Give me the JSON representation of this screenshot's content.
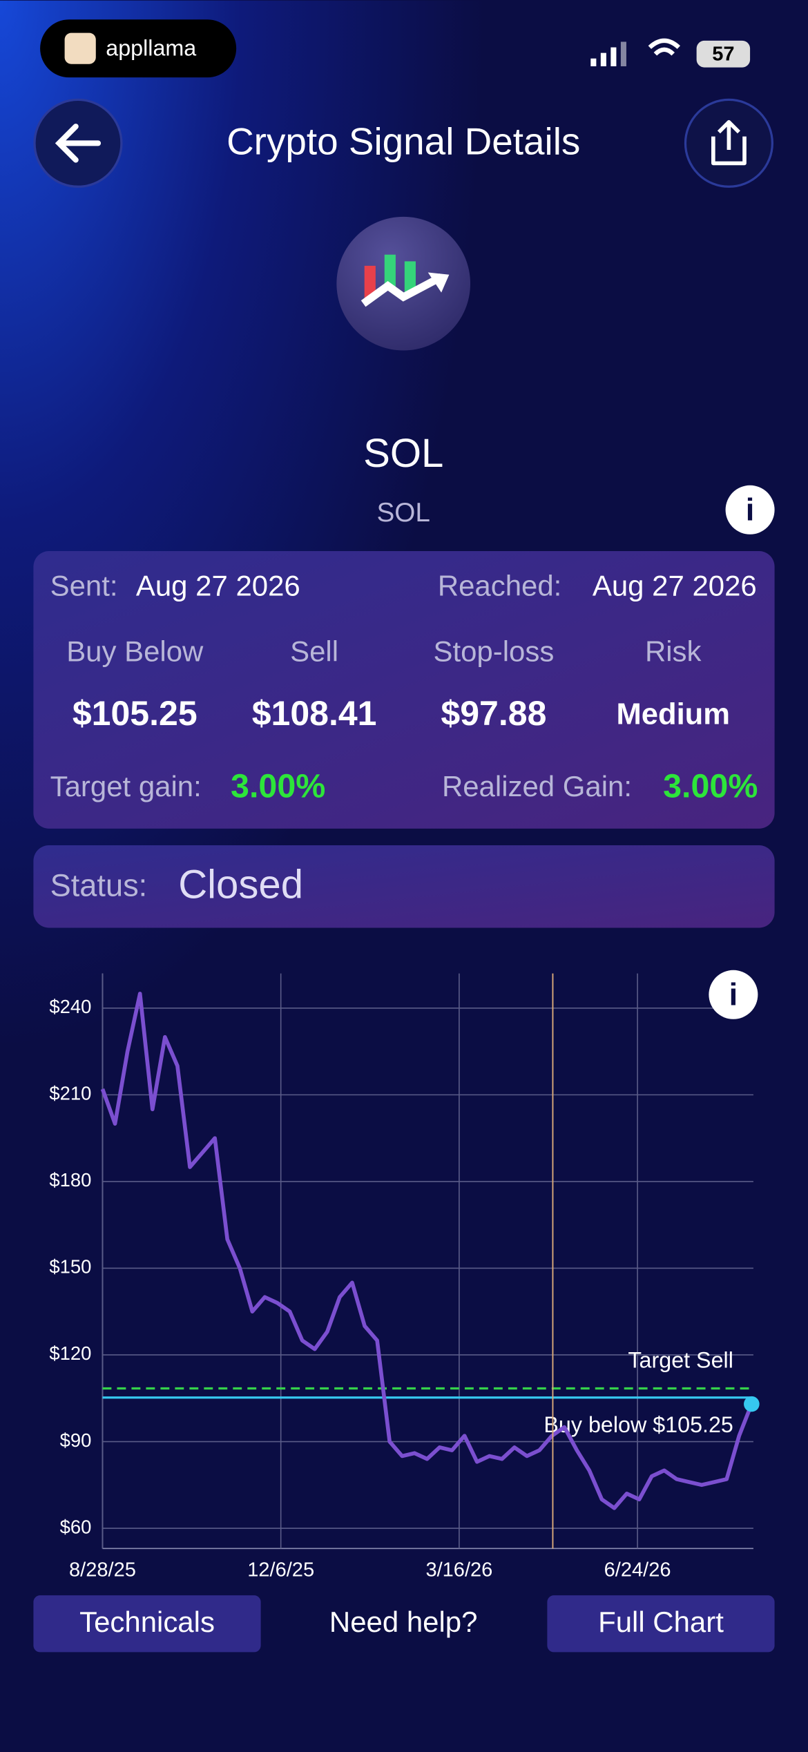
{
  "status_bar": {
    "app": "appllama",
    "battery": "57"
  },
  "header": {
    "title": "Crypto Signal Details"
  },
  "coin": {
    "name": "SOL",
    "symbol": "SOL"
  },
  "signal": {
    "sent_label": "Sent:",
    "sent": "Aug 27 2026",
    "reached_label": "Reached:",
    "reached": "Aug 27 2026",
    "columns": [
      {
        "label": "Buy Below",
        "value": "$105.25"
      },
      {
        "label": "Sell",
        "value": "$108.41"
      },
      {
        "label": "Stop-loss",
        "value": "$97.88"
      },
      {
        "label": "Risk",
        "value": "Medium"
      }
    ],
    "target_label": "Target gain:",
    "target": "3.00%",
    "realized_label": "Realized Gain:",
    "realized": "3.00%"
  },
  "status": {
    "label": "Status:",
    "value": "Closed"
  },
  "chart_data": {
    "type": "line",
    "x": [
      "2025-08-28",
      "2025-09-04",
      "2025-09-11",
      "2025-09-18",
      "2025-09-25",
      "2025-10-02",
      "2025-10-09",
      "2025-10-16",
      "2025-10-23",
      "2025-10-30",
      "2025-11-06",
      "2025-11-13",
      "2025-11-20",
      "2025-11-27",
      "2025-12-04",
      "2025-12-11",
      "2025-12-18",
      "2025-12-25",
      "2026-01-01",
      "2026-01-08",
      "2026-01-15",
      "2026-01-22",
      "2026-01-29",
      "2026-02-05",
      "2026-02-12",
      "2026-02-19",
      "2026-02-26",
      "2026-03-05",
      "2026-03-12",
      "2026-03-19",
      "2026-03-26",
      "2026-04-02",
      "2026-04-09",
      "2026-04-16",
      "2026-04-23",
      "2026-04-30",
      "2026-05-07",
      "2026-05-14",
      "2026-05-21",
      "2026-05-28",
      "2026-06-04",
      "2026-06-11",
      "2026-06-18",
      "2026-06-25",
      "2026-07-02",
      "2026-07-09",
      "2026-07-16",
      "2026-07-23",
      "2026-07-30",
      "2026-08-06",
      "2026-08-13",
      "2026-08-20",
      "2026-08-27"
    ],
    "series": [
      {
        "color": "#7b4fd0",
        "values": [
          212,
          200,
          225,
          245,
          205,
          230,
          220,
          185,
          190,
          195,
          160,
          150,
          135,
          140,
          138,
          135,
          125,
          122,
          128,
          140,
          145,
          130,
          125,
          90,
          85,
          86,
          84,
          88,
          87,
          92,
          83,
          85,
          84,
          88,
          85,
          87,
          92,
          95,
          87,
          80,
          70,
          67,
          72,
          70,
          78,
          80,
          77,
          76,
          75,
          76,
          77,
          92,
          103
        ]
      }
    ],
    "xlim": [
      "2025-08-28",
      "2026-08-28"
    ],
    "xticks": [
      {
        "value": "2025-08-28",
        "label": "8/28/25"
      },
      {
        "value": "2025-12-06",
        "label": "12/6/25"
      },
      {
        "value": "2026-03-16",
        "label": "3/16/26"
      },
      {
        "value": "2026-06-24",
        "label": "6/24/26"
      }
    ],
    "ylim": [
      53,
      252
    ],
    "yticks": [
      {
        "value": 60,
        "label": "$60"
      },
      {
        "value": 90,
        "label": "$90"
      },
      {
        "value": 120,
        "label": "$120"
      },
      {
        "value": 150,
        "label": "$150"
      },
      {
        "value": 180,
        "label": "$180"
      },
      {
        "value": 210,
        "label": "$210"
      },
      {
        "value": 240,
        "label": "$240"
      }
    ],
    "grid": true,
    "reference_lines": [
      {
        "value": 108.41,
        "label": "Target Sell",
        "color": "#35d24a",
        "dashed": true
      },
      {
        "value": 105.25,
        "label": "Buy below $105.25",
        "color": "#36c8f0",
        "dashed": false
      }
    ]
  },
  "buttons": {
    "technicals": "Technicals",
    "help": "Need help?",
    "full_chart": "Full Chart"
  }
}
